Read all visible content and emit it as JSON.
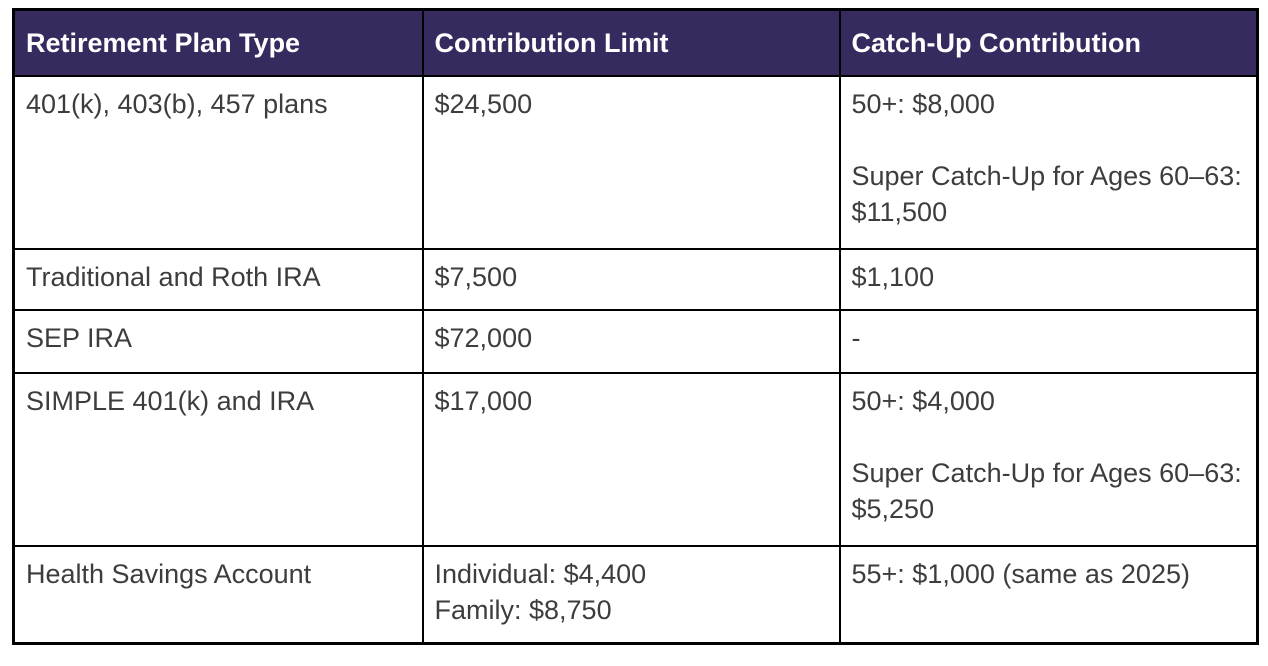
{
  "table": {
    "title_semantic": "2026 retirement plan contribution limits table",
    "colors": {
      "header_bg": "#372a5e",
      "header_text": "#ffffff",
      "body_text": "#3d3d3d",
      "border": "#000000",
      "background": "#ffffff"
    },
    "columns": [
      "Retirement Plan Type",
      "Contribution Limit",
      "Catch-Up Contribution"
    ],
    "rows": [
      {
        "cells": [
          [
            "401(k), 403(b), 457 plans"
          ],
          [
            "$24,500"
          ],
          [
            "50+: $8,000",
            "",
            "Super Catch-Up for Ages 60–63: $11,500"
          ]
        ]
      },
      {
        "cells": [
          [
            "Traditional and Roth IRA"
          ],
          [
            "$7,500"
          ],
          [
            "$1,100"
          ]
        ]
      },
      {
        "cells": [
          [
            "SEP IRA"
          ],
          [
            "$72,000"
          ],
          [
            "-"
          ]
        ]
      },
      {
        "cells": [
          [
            "SIMPLE 401(k) and IRA"
          ],
          [
            "$17,000"
          ],
          [
            "50+: $4,000",
            "",
            "Super Catch-Up for Ages 60–63: $5,250"
          ]
        ]
      },
      {
        "cells": [
          [
            "Health Savings Account"
          ],
          [
            "Individual: $4,400",
            "Family: $8,750"
          ],
          [
            "55+: $1,000 (same as 2025)"
          ]
        ]
      }
    ]
  }
}
